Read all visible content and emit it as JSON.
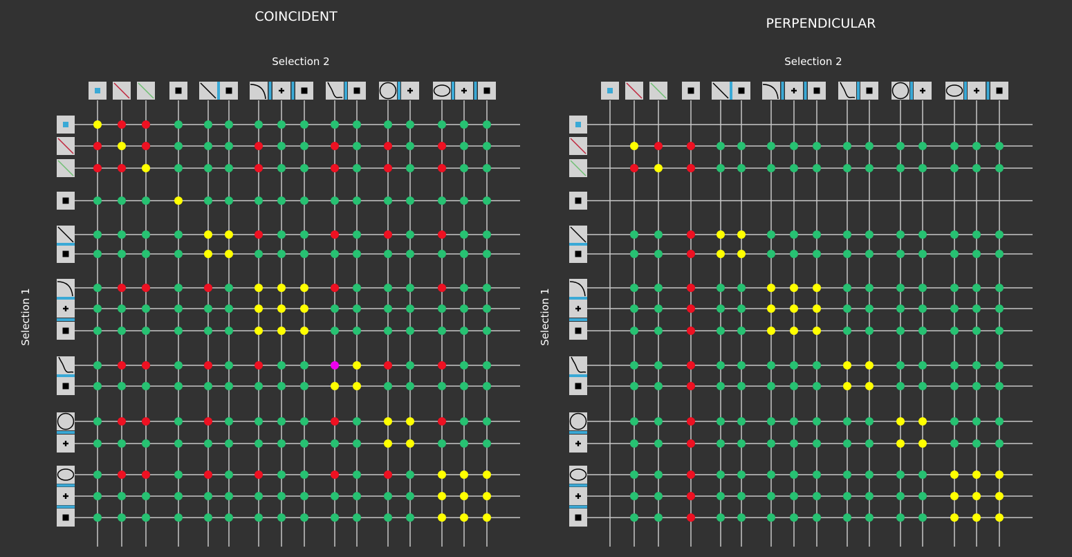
{
  "colors": {
    "background": "#323232",
    "grid": "#c8c8c8",
    "icon_box": "#d2d2d2",
    "separator": "#3aa9d6",
    "G": "#27c172",
    "Y": "#ffff00",
    "R": "#ee1122",
    "M": "#ee00ee",
    "icon_point_blue": "#3aa9d6",
    "icon_line_red": "#c0243c",
    "icon_line_green": "#6fbf73"
  },
  "entities": [
    {
      "icon": "point-blue-icon",
      "group": 0
    },
    {
      "icon": "line-red-icon",
      "group": 1
    },
    {
      "icon": "line-green-icon",
      "group": 2
    },
    {
      "icon": "point-icon",
      "group": 3
    },
    {
      "icon": "line-icon",
      "group": 4
    },
    {
      "icon": "point-icon",
      "group": 4
    },
    {
      "icon": "arc-icon",
      "group": 5
    },
    {
      "icon": "center-plus-icon",
      "group": 5
    },
    {
      "icon": "point-icon",
      "group": 5
    },
    {
      "icon": "spline-icon",
      "group": 6
    },
    {
      "icon": "point-icon",
      "group": 6
    },
    {
      "icon": "circle-icon",
      "group": 7
    },
    {
      "icon": "center-plus-icon",
      "group": 7
    },
    {
      "icon": "ellipse-icon",
      "group": 8
    },
    {
      "icon": "center-plus-icon",
      "group": 8
    },
    {
      "icon": "point-icon",
      "group": 8
    }
  ],
  "panels": [
    {
      "title": "COINCIDENT",
      "x_label": "Selection 2",
      "y_label": "Selection 1",
      "matrix": [
        "YRRGGGGGGGGGGGGG",
        "RYRGGGRGGRGRGRGG",
        "RRYGGGRGGRGRGRGG",
        "GGGYGGGGGGGGGGGG",
        "GGGGYYRGGRGRGRGG",
        "GGGGYYGGGGGGGGGG",
        "GRRGRGYYYRGGGRGG",
        "GGGGGGYYYGGGGGGG",
        "GGGGGGYYYGGGGGGG",
        "GRRGRGRGGMYRGRGG",
        "GGGGGGGGGYYGGGGG",
        "GRRGRGGGGRGYYRGG",
        "GGGGGGGGGGGYYGGG",
        "GRRGRGRGGRGRGYYY",
        "GGGGGGGGGGGGGYYY",
        "GGGGGGGGGGGGGYYY"
      ]
    },
    {
      "title": "PERPENDICULAR",
      "x_label": "Selection 2",
      "y_label": "Selection 1",
      "matrix": [
        "----------------",
        "-YRRGGGGGGGGGGGG",
        "-RYRGGGGGGGGGGGG",
        "----------------",
        "-GGRYYGGGGGGGGGG",
        "-GGRYYGGGGGGGGGG",
        "-GGRGGYYYGGGGGGG",
        "-GGRGGYYYGGGGGGG",
        "-GGRGGYYYGGGGGGG",
        "-GGRGGGGGYYGGGGG",
        "-GGRGGGGGYYGGGGG",
        "-GGRGGGGGGGYYGGG",
        "-GGRGGGGGGGYYGGG",
        "-GGRGGGGGGGGGYYY",
        "-GGRGGGGGGGGGYYY",
        "-GGRGGGGGGGGGYYY"
      ]
    }
  ]
}
